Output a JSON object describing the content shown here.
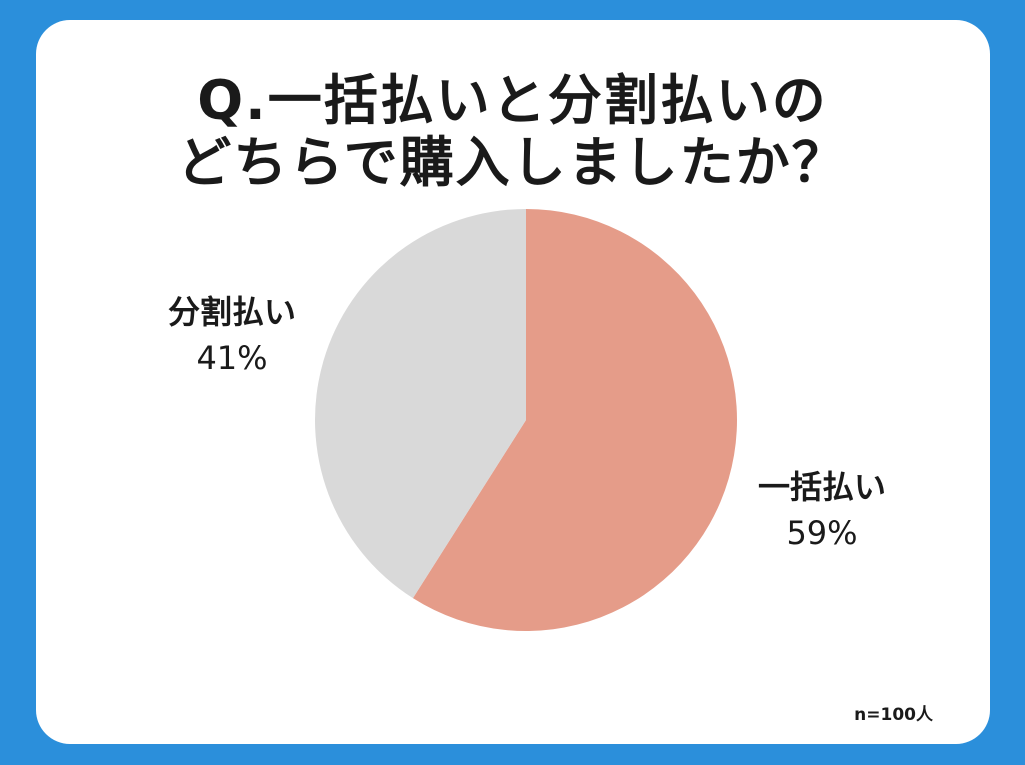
{
  "title": {
    "line1": "Q.一括払いと分割払いの",
    "line2": "どちらで購入しましたか？"
  },
  "note": "n=100人",
  "colors": {
    "background": "#2b8fdb",
    "card": "#ffffff"
  },
  "chart_data": {
    "type": "pie",
    "title": "Q.一括払いと分割払いの どちらで購入しましたか？",
    "unit": "%",
    "start": "12 o'clock",
    "direction": "clockwise",
    "slices": [
      {
        "label": "一括払い",
        "value": 59,
        "value_label": "59%",
        "color": "#e59c89"
      },
      {
        "label": "分割払い",
        "value": 41,
        "value_label": "41%",
        "color": "#d9d9d9"
      }
    ]
  }
}
